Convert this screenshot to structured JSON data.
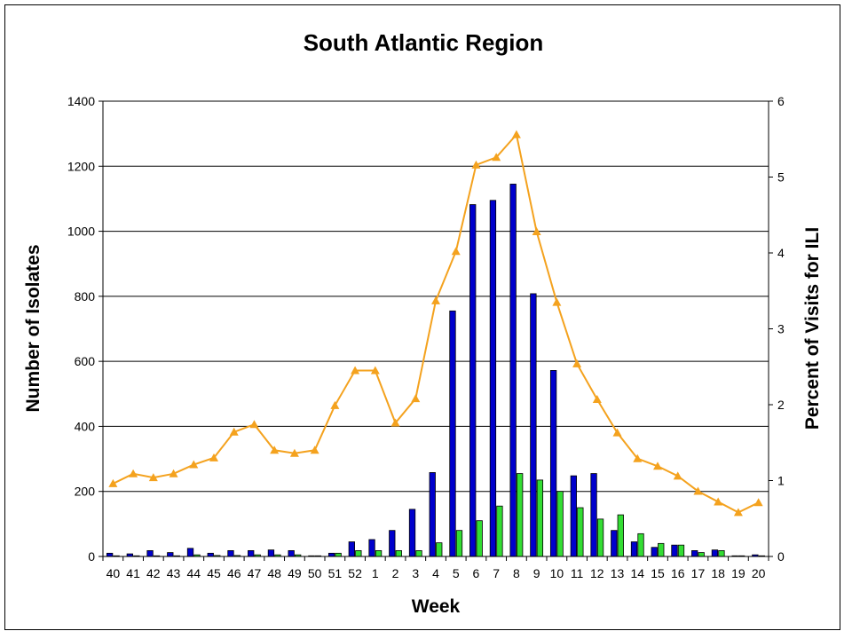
{
  "chart_data": {
    "type": "bar",
    "title": "South Atlantic Region",
    "xlabel": "Week",
    "ylabel": "Number of Isolates",
    "y2label": "Percent of Visits for ILI",
    "ylim": [
      0,
      1400
    ],
    "y2lim": [
      0,
      6
    ],
    "yticks": [
      "0",
      "200",
      "400",
      "600",
      "800",
      "1000",
      "1200",
      "1400"
    ],
    "y2ticks": [
      "0",
      "1",
      "2",
      "3",
      "4",
      "5",
      "6"
    ],
    "grid": true,
    "legend": "none",
    "categories": [
      "40",
      "41",
      "42",
      "43",
      "44",
      "45",
      "46",
      "47",
      "48",
      "49",
      "50",
      "51",
      "52",
      "1",
      "2",
      "3",
      "4",
      "5",
      "6",
      "7",
      "8",
      "9",
      "10",
      "11",
      "12",
      "13",
      "14",
      "15",
      "16",
      "17",
      "18",
      "19",
      "20"
    ],
    "series": [
      {
        "type": "bar",
        "axis": "left",
        "color": "#0000cc",
        "values": [
          10,
          8,
          18,
          12,
          25,
          10,
          18,
          18,
          20,
          18,
          2,
          10,
          45,
          52,
          80,
          145,
          258,
          755,
          1082,
          1095,
          1145,
          808,
          572,
          248,
          255,
          80,
          45,
          28,
          35,
          18,
          20,
          2,
          5
        ]
      },
      {
        "type": "bar",
        "axis": "left",
        "color": "#33dd33",
        "values": [
          2,
          2,
          2,
          2,
          5,
          3,
          3,
          5,
          5,
          5,
          2,
          10,
          18,
          18,
          18,
          18,
          42,
          80,
          110,
          155,
          255,
          235,
          200,
          150,
          115,
          128,
          70,
          40,
          35,
          12,
          18,
          2,
          2
        ]
      },
      {
        "type": "line",
        "axis": "right",
        "color": "#f4a21e",
        "marker": "triangle",
        "values": [
          0.96,
          1.09,
          1.04,
          1.09,
          1.21,
          1.3,
          1.64,
          1.74,
          1.4,
          1.36,
          1.4,
          1.99,
          2.45,
          2.45,
          1.76,
          2.08,
          3.37,
          4.02,
          5.16,
          5.26,
          5.56,
          4.28,
          3.35,
          2.54,
          2.07,
          1.63,
          1.29,
          1.19,
          1.06,
          0.86,
          0.72,
          0.58,
          0.71
        ]
      }
    ]
  }
}
